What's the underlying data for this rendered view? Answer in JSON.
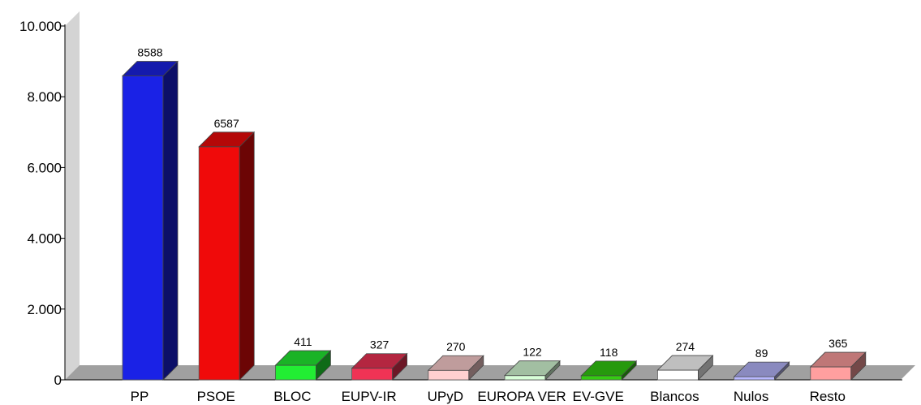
{
  "chart_data": {
    "type": "bar",
    "title": "",
    "xlabel": "",
    "ylabel": "",
    "ylim": [
      0,
      10000
    ],
    "yticks": [
      0,
      2000,
      4000,
      6000,
      8000,
      10000
    ],
    "ytick_labels": [
      "0",
      "2.000",
      "4.000",
      "6.000",
      "8.000",
      "10.000"
    ],
    "grid": false,
    "categories": [
      "PP",
      "PSOE",
      "BLOC",
      "EUPV-IR",
      "UPyD",
      "EUROPA VER",
      "EV-GVE",
      "Blancos",
      "Nulos",
      "Resto"
    ],
    "values": [
      8588,
      6587,
      411,
      327,
      270,
      122,
      118,
      274,
      89,
      365
    ],
    "data_labels": [
      "8588",
      "6587",
      "411",
      "327",
      "270",
      "122",
      "118",
      "274",
      "89",
      "365"
    ],
    "colors": [
      "#1a22e6",
      "#f00a0a",
      "#22ee33",
      "#f03355",
      "#ffd0d0",
      "#d8ffd8",
      "#33cc11",
      "#ffffff",
      "#b8b8ff",
      "#ff9f9f"
    ]
  }
}
